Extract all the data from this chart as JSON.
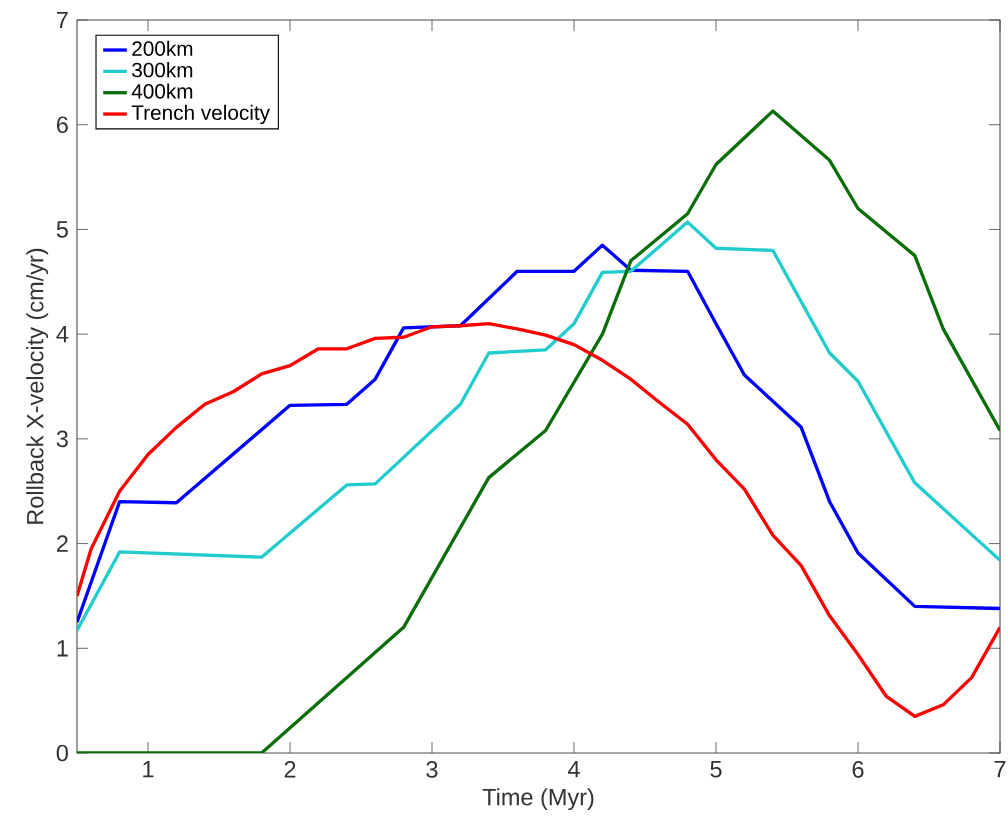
{
  "chart_data": {
    "type": "line",
    "xlabel": "Time (Myr)",
    "ylabel": "Rollback X-velocity (cm/yr)",
    "xlim": [
      0.5,
      7
    ],
    "ylim": [
      0,
      7
    ],
    "xticks": [
      1,
      2,
      3,
      4,
      5,
      6,
      7
    ],
    "yticks": [
      0,
      1,
      2,
      3,
      4,
      5,
      6,
      7
    ],
    "grid": false,
    "legend": "top left",
    "marker": "none",
    "line_style": "solid",
    "series": [
      {
        "name": "200km",
        "color": "#0000ff",
        "x": [
          0.5,
          0.8,
          1.2,
          2.0,
          2.4,
          2.6,
          2.8,
          3.2,
          3.6,
          4.0,
          4.2,
          4.4,
          4.8,
          5.0,
          5.2,
          5.6,
          5.8,
          6.0,
          6.4,
          7.0
        ],
        "values": [
          1.25,
          2.4,
          2.39,
          3.32,
          3.33,
          3.57,
          4.06,
          4.08,
          4.6,
          4.6,
          4.85,
          4.61,
          4.6,
          4.1,
          3.61,
          3.11,
          2.4,
          1.91,
          1.4,
          1.38
        ]
      },
      {
        "name": "300km",
        "color": "#22cccc",
        "x": [
          0.5,
          0.8,
          1.8,
          2.4,
          2.6,
          3.2,
          3.4,
          3.8,
          4.0,
          4.2,
          4.4,
          4.8,
          5.0,
          5.4,
          5.8,
          6.0,
          6.4,
          7.0
        ],
        "values": [
          1.17,
          1.92,
          1.87,
          2.56,
          2.57,
          3.33,
          3.82,
          3.85,
          4.1,
          4.59,
          4.6,
          5.07,
          4.82,
          4.8,
          3.82,
          3.55,
          2.58,
          1.84
        ]
      },
      {
        "name": "400km",
        "color": "#0b6e0b",
        "x": [
          0.5,
          1.8,
          2.8,
          3.4,
          3.8,
          4.2,
          4.4,
          4.8,
          5.0,
          5.4,
          5.8,
          6.0,
          6.4,
          6.6,
          7.0
        ],
        "values": [
          0,
          0,
          1.2,
          2.63,
          3.08,
          4.0,
          4.7,
          5.15,
          5.62,
          6.13,
          5.66,
          5.2,
          4.75,
          4.05,
          3.08
        ]
      },
      {
        "name": "Trench velocity",
        "color": "#ff0000",
        "x": [
          0.5,
          0.6,
          0.8,
          1.0,
          1.2,
          1.4,
          1.6,
          1.8,
          2.0,
          2.2,
          2.4,
          2.6,
          2.8,
          3.0,
          3.2,
          3.4,
          3.6,
          3.8,
          4.0,
          4.2,
          4.4,
          4.6,
          4.8,
          5.0,
          5.2,
          5.4,
          5.6,
          5.8,
          6.0,
          6.2,
          6.4,
          6.6,
          6.8,
          7.0
        ],
        "values": [
          1.5,
          1.95,
          2.5,
          2.85,
          3.11,
          3.33,
          3.45,
          3.62,
          3.7,
          3.86,
          3.86,
          3.96,
          3.97,
          4.07,
          4.08,
          4.1,
          4.05,
          3.99,
          3.9,
          3.75,
          3.57,
          3.35,
          3.14,
          2.8,
          2.52,
          2.08,
          1.79,
          1.31,
          0.94,
          0.54,
          0.35,
          0.46,
          0.72,
          1.2
        ]
      }
    ]
  }
}
